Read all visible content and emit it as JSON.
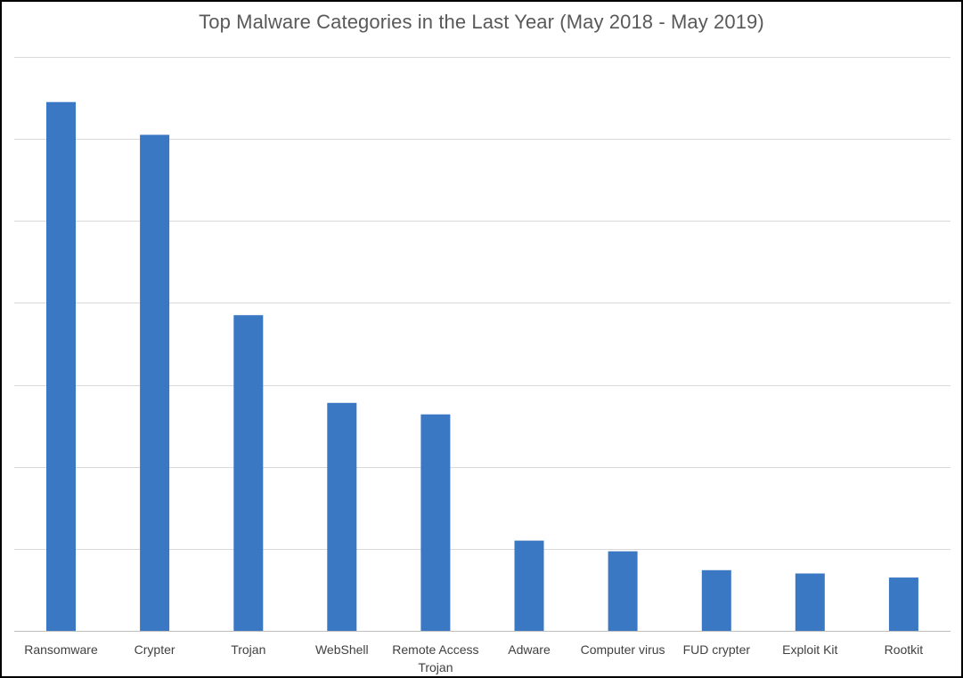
{
  "chart_data": {
    "type": "bar",
    "title": "Top Malware Categories in the Last Year (May 2018 - May 2019)",
    "categories": [
      [
        "Ransomware"
      ],
      [
        "Crypter"
      ],
      [
        "Trojan"
      ],
      [
        "WebShell"
      ],
      [
        "Remote Access",
        "Trojan"
      ],
      [
        "Adware"
      ],
      [
        "Computer virus"
      ],
      [
        "FUD crypter"
      ],
      [
        "Exploit Kit"
      ],
      [
        "Rootkit"
      ]
    ],
    "values": [
      6.45,
      6.05,
      3.85,
      2.78,
      2.64,
      1.1,
      0.97,
      0.74,
      0.7,
      0.65
    ],
    "ylim": [
      0,
      7
    ],
    "grid": true,
    "color": "#3b78c3",
    "gridColor": "#d9d9d9",
    "axisColor": "#bfbfbf"
  }
}
